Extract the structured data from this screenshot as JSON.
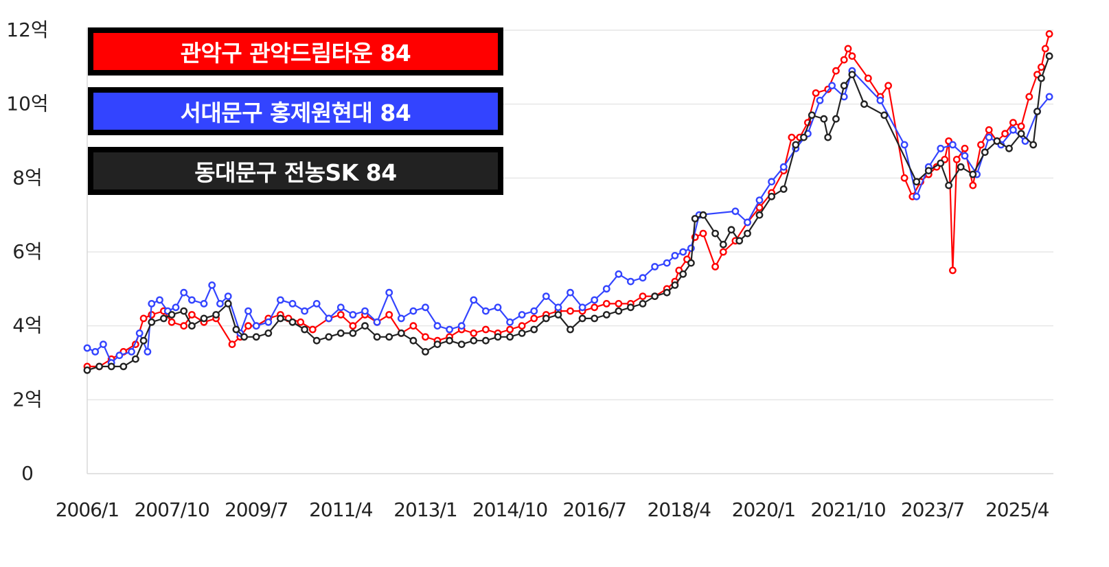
{
  "chart_data": {
    "type": "line",
    "title": "",
    "xlabel": "",
    "ylabel": "",
    "x_ticks": [
      "2006/1",
      "2007/10",
      "2009/7",
      "2011/4",
      "2013/1",
      "2014/10",
      "2016/7",
      "2018/4",
      "2020/1",
      "2021/10",
      "2023/7",
      "2025/4"
    ],
    "y_ticks": [
      "0",
      "2억",
      "4억",
      "6억",
      "8억",
      "10억",
      "12억"
    ],
    "y_tick_values": [
      0,
      2,
      4,
      6,
      8,
      10,
      12
    ],
    "ylim": [
      0,
      12
    ],
    "xlim": [
      "2006/1",
      "2026/1"
    ],
    "y_unit": "억",
    "grid": "horizontal",
    "legend_position": "top-left",
    "series": [
      {
        "name": "관악구 관악드림타운 84",
        "color": "#ff0000",
        "points": [
          [
            "2006/1",
            2.9
          ],
          [
            "2006/4",
            2.9
          ],
          [
            "2006/7",
            3.1
          ],
          [
            "2006/10",
            3.3
          ],
          [
            "2007/1",
            3.5
          ],
          [
            "2007/3",
            4.2
          ],
          [
            "2007/5",
            4.3
          ],
          [
            "2007/8",
            4.4
          ],
          [
            "2007/10",
            4.1
          ],
          [
            "2008/1",
            4.0
          ],
          [
            "2008/3",
            4.3
          ],
          [
            "2008/6",
            4.1
          ],
          [
            "2008/9",
            4.2
          ],
          [
            "2009/1",
            3.5
          ],
          [
            "2009/3",
            3.7
          ],
          [
            "2009/5",
            4.0
          ],
          [
            "2009/7",
            4.0
          ],
          [
            "2009/10",
            4.2
          ],
          [
            "2010/1",
            4.3
          ],
          [
            "2010/3",
            4.2
          ],
          [
            "2010/6",
            4.1
          ],
          [
            "2010/9",
            3.9
          ],
          [
            "2011/1",
            4.2
          ],
          [
            "2011/4",
            4.3
          ],
          [
            "2011/7",
            4.0
          ],
          [
            "2011/10",
            4.3
          ],
          [
            "2012/1",
            4.1
          ],
          [
            "2012/4",
            4.3
          ],
          [
            "2012/7",
            3.8
          ],
          [
            "2012/10",
            4.0
          ],
          [
            "2013/1",
            3.7
          ],
          [
            "2013/4",
            3.6
          ],
          [
            "2013/7",
            3.7
          ],
          [
            "2013/10",
            3.9
          ],
          [
            "2014/1",
            3.8
          ],
          [
            "2014/4",
            3.9
          ],
          [
            "2014/7",
            3.8
          ],
          [
            "2014/10",
            3.9
          ],
          [
            "2015/1",
            4.0
          ],
          [
            "2015/4",
            4.2
          ],
          [
            "2015/7",
            4.3
          ],
          [
            "2015/10",
            4.4
          ],
          [
            "2016/1",
            4.4
          ],
          [
            "2016/4",
            4.4
          ],
          [
            "2016/7",
            4.5
          ],
          [
            "2016/10",
            4.6
          ],
          [
            "2017/1",
            4.6
          ],
          [
            "2017/4",
            4.6
          ],
          [
            "2017/7",
            4.8
          ],
          [
            "2017/10",
            4.8
          ],
          [
            "2018/1",
            5.0
          ],
          [
            "2018/3",
            5.2
          ],
          [
            "2018/4",
            5.5
          ],
          [
            "2018/6",
            5.8
          ],
          [
            "2018/8",
            6.4
          ],
          [
            "2018/10",
            6.5
          ],
          [
            "2019/1",
            5.6
          ],
          [
            "2019/3",
            6.0
          ],
          [
            "2019/6",
            6.3
          ],
          [
            "2019/9",
            6.8
          ],
          [
            "2019/12",
            7.2
          ],
          [
            "2020/3",
            7.6
          ],
          [
            "2020/6",
            8.2
          ],
          [
            "2020/8",
            9.1
          ],
          [
            "2020/10",
            9.1
          ],
          [
            "2020/12",
            9.5
          ],
          [
            "2021/2",
            10.3
          ],
          [
            "2021/5",
            10.4
          ],
          [
            "2021/7",
            10.9
          ],
          [
            "2021/9",
            11.2
          ],
          [
            "2021/10",
            11.5
          ],
          [
            "2021/11",
            11.3
          ],
          [
            "2022/3",
            10.7
          ],
          [
            "2022/6",
            10.2
          ],
          [
            "2022/8",
            10.5
          ],
          [
            "2022/12",
            8.0
          ],
          [
            "2023/2",
            7.5
          ],
          [
            "2023/4",
            7.9
          ],
          [
            "2023/6",
            8.1
          ],
          [
            "2023/8",
            8.3
          ],
          [
            "2023/10",
            8.5
          ],
          [
            "2023/11",
            9.0
          ],
          [
            "2023/12",
            5.5
          ],
          [
            "2024/1",
            8.5
          ],
          [
            "2024/3",
            8.8
          ],
          [
            "2024/5",
            7.8
          ],
          [
            "2024/7",
            8.9
          ],
          [
            "2024/9",
            9.3
          ],
          [
            "2024/11",
            9.0
          ],
          [
            "2025/1",
            9.2
          ],
          [
            "2025/3",
            9.5
          ],
          [
            "2025/5",
            9.4
          ],
          [
            "2025/7",
            10.2
          ],
          [
            "2025/9",
            10.8
          ],
          [
            "2025/10",
            11.0
          ],
          [
            "2025/11",
            11.5
          ],
          [
            "2025/12",
            11.9
          ]
        ]
      },
      {
        "name": "서대문구 홍제원현대 84",
        "color": "#3344ff",
        "points": [
          [
            "2006/1",
            3.4
          ],
          [
            "2006/3",
            3.3
          ],
          [
            "2006/5",
            3.5
          ],
          [
            "2006/7",
            3.0
          ],
          [
            "2006/9",
            3.2
          ],
          [
            "2006/12",
            3.3
          ],
          [
            "2007/2",
            3.8
          ],
          [
            "2007/4",
            3.3
          ],
          [
            "2007/5",
            4.6
          ],
          [
            "2007/7",
            4.7
          ],
          [
            "2007/9",
            4.4
          ],
          [
            "2007/11",
            4.5
          ],
          [
            "2008/1",
            4.9
          ],
          [
            "2008/3",
            4.7
          ],
          [
            "2008/6",
            4.6
          ],
          [
            "2008/8",
            5.1
          ],
          [
            "2008/10",
            4.6
          ],
          [
            "2008/12",
            4.8
          ],
          [
            "2009/3",
            3.8
          ],
          [
            "2009/5",
            4.4
          ],
          [
            "2009/7",
            4.0
          ],
          [
            "2009/10",
            4.1
          ],
          [
            "2010/1",
            4.7
          ],
          [
            "2010/4",
            4.6
          ],
          [
            "2010/7",
            4.4
          ],
          [
            "2010/10",
            4.6
          ],
          [
            "2011/1",
            4.2
          ],
          [
            "2011/4",
            4.5
          ],
          [
            "2011/7",
            4.3
          ],
          [
            "2011/10",
            4.4
          ],
          [
            "2012/1",
            4.1
          ],
          [
            "2012/4",
            4.9
          ],
          [
            "2012/7",
            4.2
          ],
          [
            "2012/10",
            4.4
          ],
          [
            "2013/1",
            4.5
          ],
          [
            "2013/4",
            4.0
          ],
          [
            "2013/7",
            3.9
          ],
          [
            "2013/10",
            4.0
          ],
          [
            "2014/1",
            4.7
          ],
          [
            "2014/4",
            4.4
          ],
          [
            "2014/7",
            4.5
          ],
          [
            "2014/10",
            4.1
          ],
          [
            "2015/1",
            4.3
          ],
          [
            "2015/4",
            4.4
          ],
          [
            "2015/7",
            4.8
          ],
          [
            "2015/10",
            4.5
          ],
          [
            "2016/1",
            4.9
          ],
          [
            "2016/4",
            4.5
          ],
          [
            "2016/7",
            4.7
          ],
          [
            "2016/10",
            5.0
          ],
          [
            "2017/1",
            5.4
          ],
          [
            "2017/4",
            5.2
          ],
          [
            "2017/7",
            5.3
          ],
          [
            "2017/10",
            5.6
          ],
          [
            "2018/1",
            5.7
          ],
          [
            "2018/3",
            5.9
          ],
          [
            "2018/5",
            6.0
          ],
          [
            "2018/7",
            6.1
          ],
          [
            "2018/9",
            7.0
          ],
          [
            "2019/6",
            7.1
          ],
          [
            "2019/9",
            6.8
          ],
          [
            "2019/12",
            7.4
          ],
          [
            "2020/3",
            7.9
          ],
          [
            "2020/6",
            8.3
          ],
          [
            "2020/9",
            8.8
          ],
          [
            "2020/12",
            9.2
          ],
          [
            "2021/3",
            10.1
          ],
          [
            "2021/6",
            10.5
          ],
          [
            "2021/9",
            10.2
          ],
          [
            "2021/11",
            10.9
          ],
          [
            "2022/6",
            10.1
          ],
          [
            "2022/12",
            8.9
          ],
          [
            "2023/3",
            7.5
          ],
          [
            "2023/6",
            8.3
          ],
          [
            "2023/9",
            8.8
          ],
          [
            "2023/12",
            8.9
          ],
          [
            "2024/3",
            8.6
          ],
          [
            "2024/6",
            8.1
          ],
          [
            "2024/9",
            9.1
          ],
          [
            "2024/12",
            8.9
          ],
          [
            "2025/3",
            9.3
          ],
          [
            "2025/6",
            9.0
          ],
          [
            "2025/9",
            9.8
          ],
          [
            "2025/12",
            10.2
          ]
        ]
      },
      {
        "name": "동대문구 전농SK 84",
        "color": "#222222",
        "points": [
          [
            "2006/1",
            2.8
          ],
          [
            "2006/4",
            2.9
          ],
          [
            "2006/7",
            2.9
          ],
          [
            "2006/10",
            2.9
          ],
          [
            "2007/1",
            3.1
          ],
          [
            "2007/3",
            3.6
          ],
          [
            "2007/5",
            4.1
          ],
          [
            "2007/8",
            4.2
          ],
          [
            "2007/10",
            4.3
          ],
          [
            "2008/1",
            4.4
          ],
          [
            "2008/3",
            4.0
          ],
          [
            "2008/6",
            4.2
          ],
          [
            "2008/9",
            4.3
          ],
          [
            "2008/12",
            4.6
          ],
          [
            "2009/2",
            3.9
          ],
          [
            "2009/4",
            3.7
          ],
          [
            "2009/7",
            3.7
          ],
          [
            "2009/10",
            3.8
          ],
          [
            "2010/1",
            4.2
          ],
          [
            "2010/4",
            4.1
          ],
          [
            "2010/7",
            3.9
          ],
          [
            "2010/10",
            3.6
          ],
          [
            "2011/1",
            3.7
          ],
          [
            "2011/4",
            3.8
          ],
          [
            "2011/7",
            3.8
          ],
          [
            "2011/10",
            4.0
          ],
          [
            "2012/1",
            3.7
          ],
          [
            "2012/4",
            3.7
          ],
          [
            "2012/7",
            3.8
          ],
          [
            "2012/10",
            3.6
          ],
          [
            "2013/1",
            3.3
          ],
          [
            "2013/4",
            3.5
          ],
          [
            "2013/7",
            3.6
          ],
          [
            "2013/10",
            3.5
          ],
          [
            "2014/1",
            3.6
          ],
          [
            "2014/4",
            3.6
          ],
          [
            "2014/7",
            3.7
          ],
          [
            "2014/10",
            3.7
          ],
          [
            "2015/1",
            3.8
          ],
          [
            "2015/4",
            3.9
          ],
          [
            "2015/7",
            4.2
          ],
          [
            "2015/10",
            4.3
          ],
          [
            "2016/1",
            3.9
          ],
          [
            "2016/4",
            4.2
          ],
          [
            "2016/7",
            4.2
          ],
          [
            "2016/10",
            4.3
          ],
          [
            "2017/1",
            4.4
          ],
          [
            "2017/4",
            4.5
          ],
          [
            "2017/7",
            4.6
          ],
          [
            "2017/10",
            4.8
          ],
          [
            "2018/1",
            4.9
          ],
          [
            "2018/3",
            5.1
          ],
          [
            "2018/5",
            5.4
          ],
          [
            "2018/7",
            5.7
          ],
          [
            "2018/8",
            6.9
          ],
          [
            "2018/10",
            7.0
          ],
          [
            "2019/1",
            6.5
          ],
          [
            "2019/3",
            6.2
          ],
          [
            "2019/5",
            6.6
          ],
          [
            "2019/7",
            6.3
          ],
          [
            "2019/9",
            6.5
          ],
          [
            "2019/12",
            7.0
          ],
          [
            "2020/3",
            7.5
          ],
          [
            "2020/6",
            7.7
          ],
          [
            "2020/9",
            8.9
          ],
          [
            "2020/11",
            9.1
          ],
          [
            "2021/1",
            9.7
          ],
          [
            "2021/4",
            9.6
          ],
          [
            "2021/5",
            9.1
          ],
          [
            "2021/7",
            9.6
          ],
          [
            "2021/9",
            10.5
          ],
          [
            "2021/11",
            10.8
          ],
          [
            "2022/2",
            10.0
          ],
          [
            "2022/7",
            9.7
          ],
          [
            "2023/3",
            7.9
          ],
          [
            "2023/6",
            8.2
          ],
          [
            "2023/9",
            8.4
          ],
          [
            "2023/11",
            7.8
          ],
          [
            "2024/2",
            8.3
          ],
          [
            "2024/5",
            8.1
          ],
          [
            "2024/8",
            8.7
          ],
          [
            "2024/11",
            9.0
          ],
          [
            "2025/2",
            8.8
          ],
          [
            "2025/5",
            9.2
          ],
          [
            "2025/8",
            8.9
          ],
          [
            "2025/9",
            9.8
          ],
          [
            "2025/10",
            10.7
          ],
          [
            "2025/12",
            11.3
          ]
        ]
      }
    ]
  }
}
